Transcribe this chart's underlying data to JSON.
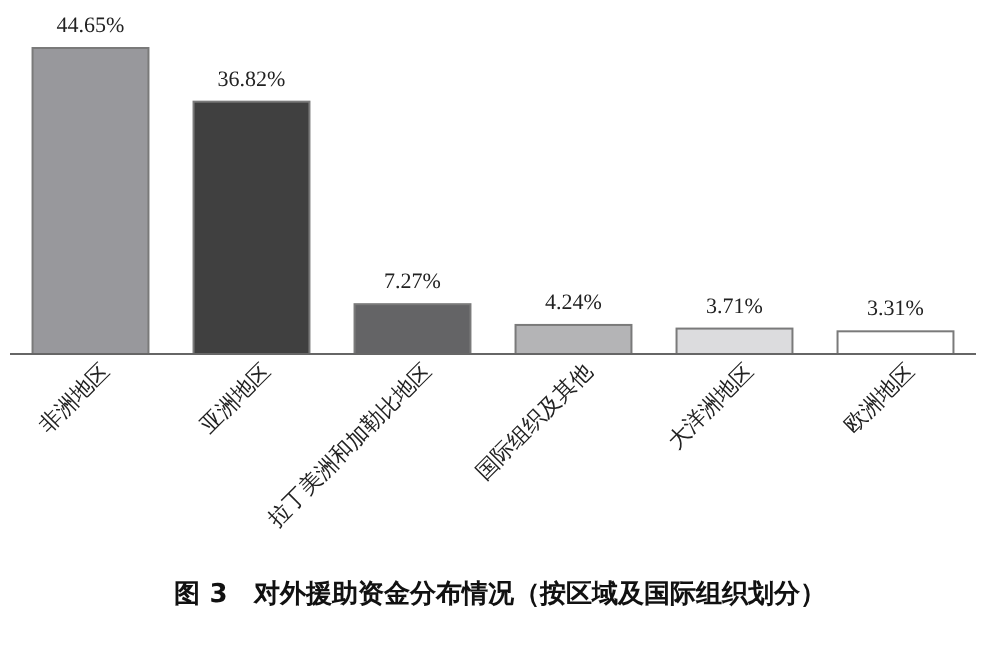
{
  "chart_data": {
    "type": "bar",
    "title": "图 3　对外援助资金分布情况（按区域及国际组织划分）",
    "categories": [
      "非洲地区",
      "亚洲地区",
      "拉丁美洲和加勒比地区",
      "国际组织及其他",
      "大洋洲地区",
      "欧洲地区"
    ],
    "values": [
      44.65,
      36.82,
      7.27,
      4.24,
      3.71,
      3.31
    ],
    "value_labels": [
      "44.65%",
      "36.82%",
      "7.27%",
      "4.24%",
      "3.71%",
      "3.31%"
    ],
    "colors": [
      "#98989c",
      "#404040",
      "#646466",
      "#b4b4b6",
      "#dcdcde",
      "#ffffff"
    ],
    "grid": false
  }
}
